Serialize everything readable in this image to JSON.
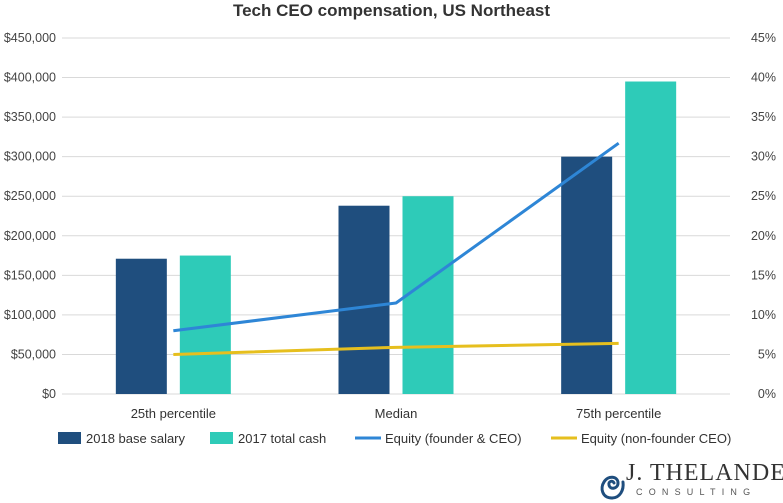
{
  "chart_data": {
    "type": "bar",
    "title": "Tech CEO compensation,  US Northeast",
    "categories": [
      "25th percentile",
      "Median",
      "75th percentile"
    ],
    "series": [
      {
        "name": "2018 base salary",
        "kind": "bar",
        "axis": "left",
        "color": "#1f4e7e",
        "values": [
          171000,
          238000,
          300000
        ]
      },
      {
        "name": "2017 total cash",
        "kind": "bar",
        "axis": "left",
        "color": "#2ecbb8",
        "values": [
          175000,
          250000,
          395000
        ]
      },
      {
        "name": "Equity (founder & CEO)",
        "kind": "line",
        "axis": "right",
        "color": "#2e86d6",
        "values": [
          0.08,
          0.115,
          0.317
        ]
      },
      {
        "name": "Equity (non-founder CEO)",
        "kind": "line",
        "axis": "right",
        "color": "#e6bf1e",
        "values": [
          0.05,
          0.059,
          0.064
        ]
      }
    ],
    "y_left": {
      "min": 0,
      "max": 450000,
      "step": 50000,
      "tick_labels": [
        "$0",
        "$50,000",
        "$100,000",
        "$150,000",
        "$200,000",
        "$250,000",
        "$300,000",
        "$350,000",
        "$400,000",
        "$450,000"
      ]
    },
    "y_right": {
      "min": 0,
      "max": 0.45,
      "step": 0.05,
      "tick_labels": [
        "0%",
        "5%",
        "10%",
        "15%",
        "20%",
        "25%",
        "30%",
        "35%",
        "40%",
        "45%"
      ]
    },
    "grid": true,
    "legend_position": "bottom"
  },
  "logo": {
    "name": "J. THELANDER",
    "subtitle": "CONSULTING",
    "icon": "swirl-icon",
    "color": "#1f4e7e"
  }
}
